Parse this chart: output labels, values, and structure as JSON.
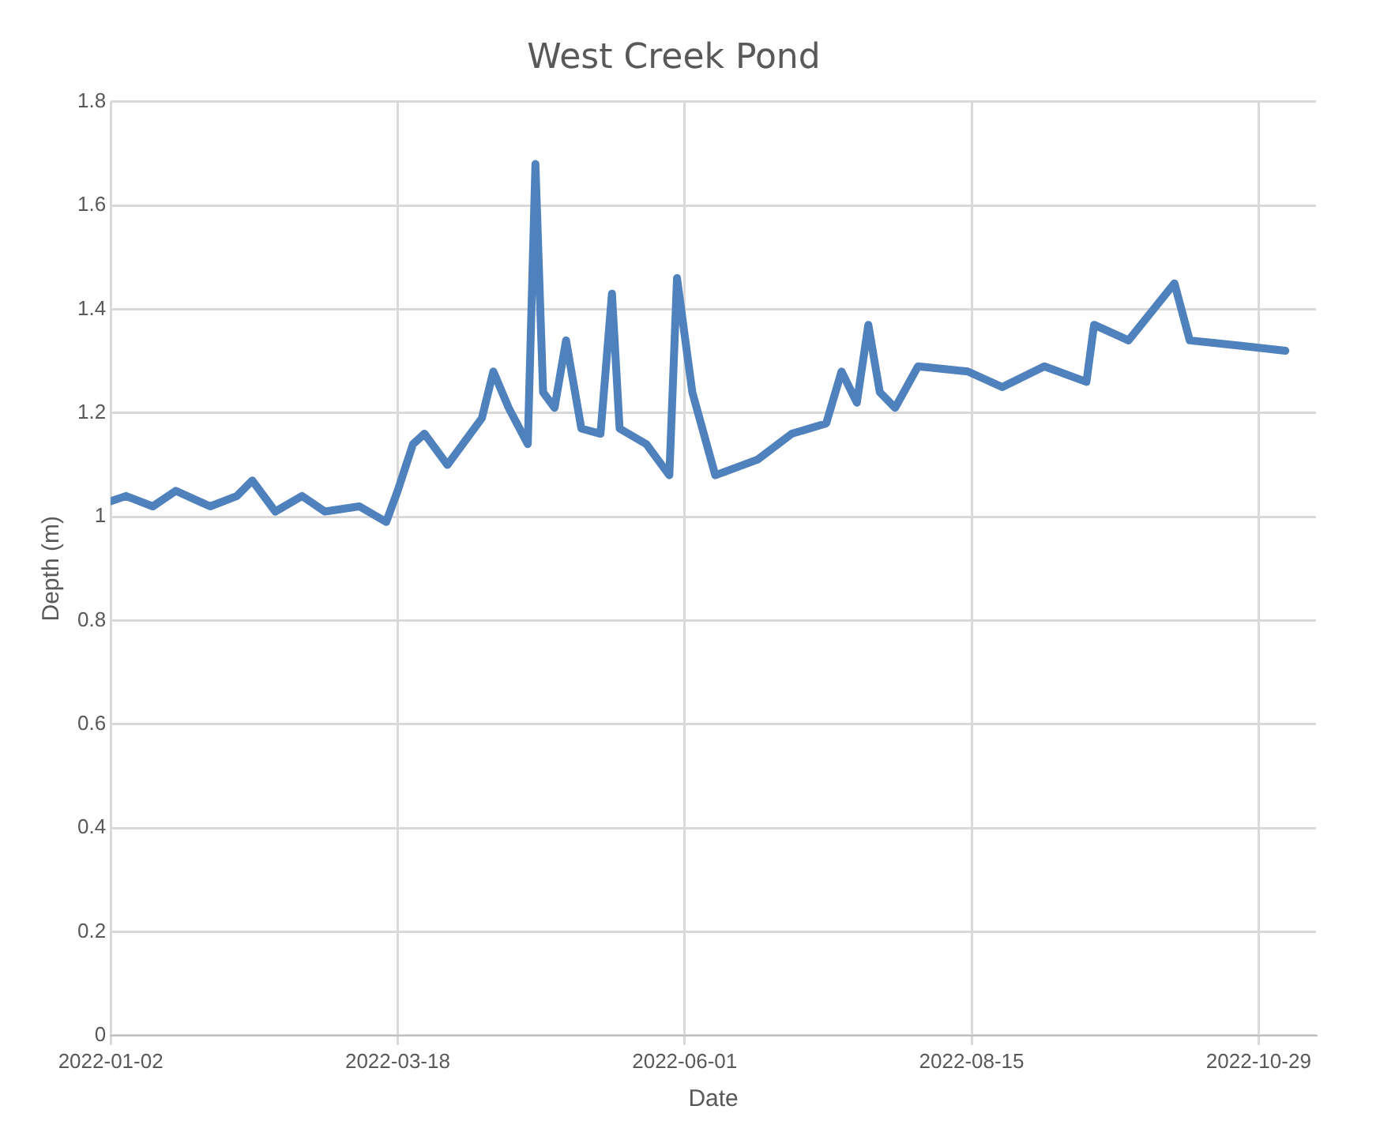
{
  "chart_data": {
    "type": "line",
    "title": "West Creek Pond",
    "xlabel": "Date",
    "ylabel": "Depth (m)",
    "x": [
      "2022-01-02",
      "2022-01-06",
      "2022-01-13",
      "2022-01-19",
      "2022-01-28",
      "2022-02-04",
      "2022-02-08",
      "2022-02-14",
      "2022-02-21",
      "2022-02-27",
      "2022-03-08",
      "2022-03-15",
      "2022-03-18",
      "2022-03-22",
      "2022-03-25",
      "2022-03-31",
      "2022-04-05",
      "2022-04-09",
      "2022-04-12",
      "2022-04-16",
      "2022-04-21",
      "2022-04-23",
      "2022-04-25",
      "2022-04-28",
      "2022-05-01",
      "2022-05-05",
      "2022-05-10",
      "2022-05-13",
      "2022-05-15",
      "2022-05-22",
      "2022-05-28",
      "2022-05-30",
      "2022-06-03",
      "2022-06-09",
      "2022-06-20",
      "2022-06-29",
      "2022-07-08",
      "2022-07-12",
      "2022-07-16",
      "2022-07-19",
      "2022-07-22",
      "2022-07-26",
      "2022-08-01",
      "2022-08-14",
      "2022-08-23",
      "2022-09-03",
      "2022-09-14",
      "2022-09-16",
      "2022-09-25",
      "2022-10-07",
      "2022-10-11",
      "2022-10-24",
      "2022-11-05"
    ],
    "series": [
      {
        "color": "#4f81bd",
        "values": [
          1.03,
          1.04,
          1.02,
          1.05,
          1.02,
          1.04,
          1.07,
          1.01,
          1.04,
          1.01,
          1.02,
          0.99,
          1.05,
          1.14,
          1.16,
          1.1,
          1.15,
          1.19,
          1.28,
          1.21,
          1.14,
          1.68,
          1.24,
          1.21,
          1.34,
          1.17,
          1.16,
          1.43,
          1.17,
          1.14,
          1.08,
          1.46,
          1.24,
          1.08,
          1.11,
          1.16,
          1.18,
          1.28,
          1.22,
          1.37,
          1.24,
          1.21,
          1.29,
          1.28,
          1.25,
          1.29,
          1.26,
          1.37,
          1.34,
          1.45,
          1.34,
          1.33,
          1.32
        ]
      }
    ],
    "xlim": [
      "2022-01-02",
      "2022-11-13"
    ],
    "xticks": [
      "2022-01-02",
      "2022-03-18",
      "2022-06-01",
      "2022-08-15",
      "2022-10-29"
    ],
    "ylim": [
      0,
      1.8
    ],
    "yticks": [
      0,
      0.2,
      0.4,
      0.6,
      0.8,
      1,
      1.2,
      1.4,
      1.6,
      1.8
    ],
    "grid": true,
    "legend": false,
    "marker": "none",
    "line_style": "solid"
  }
}
